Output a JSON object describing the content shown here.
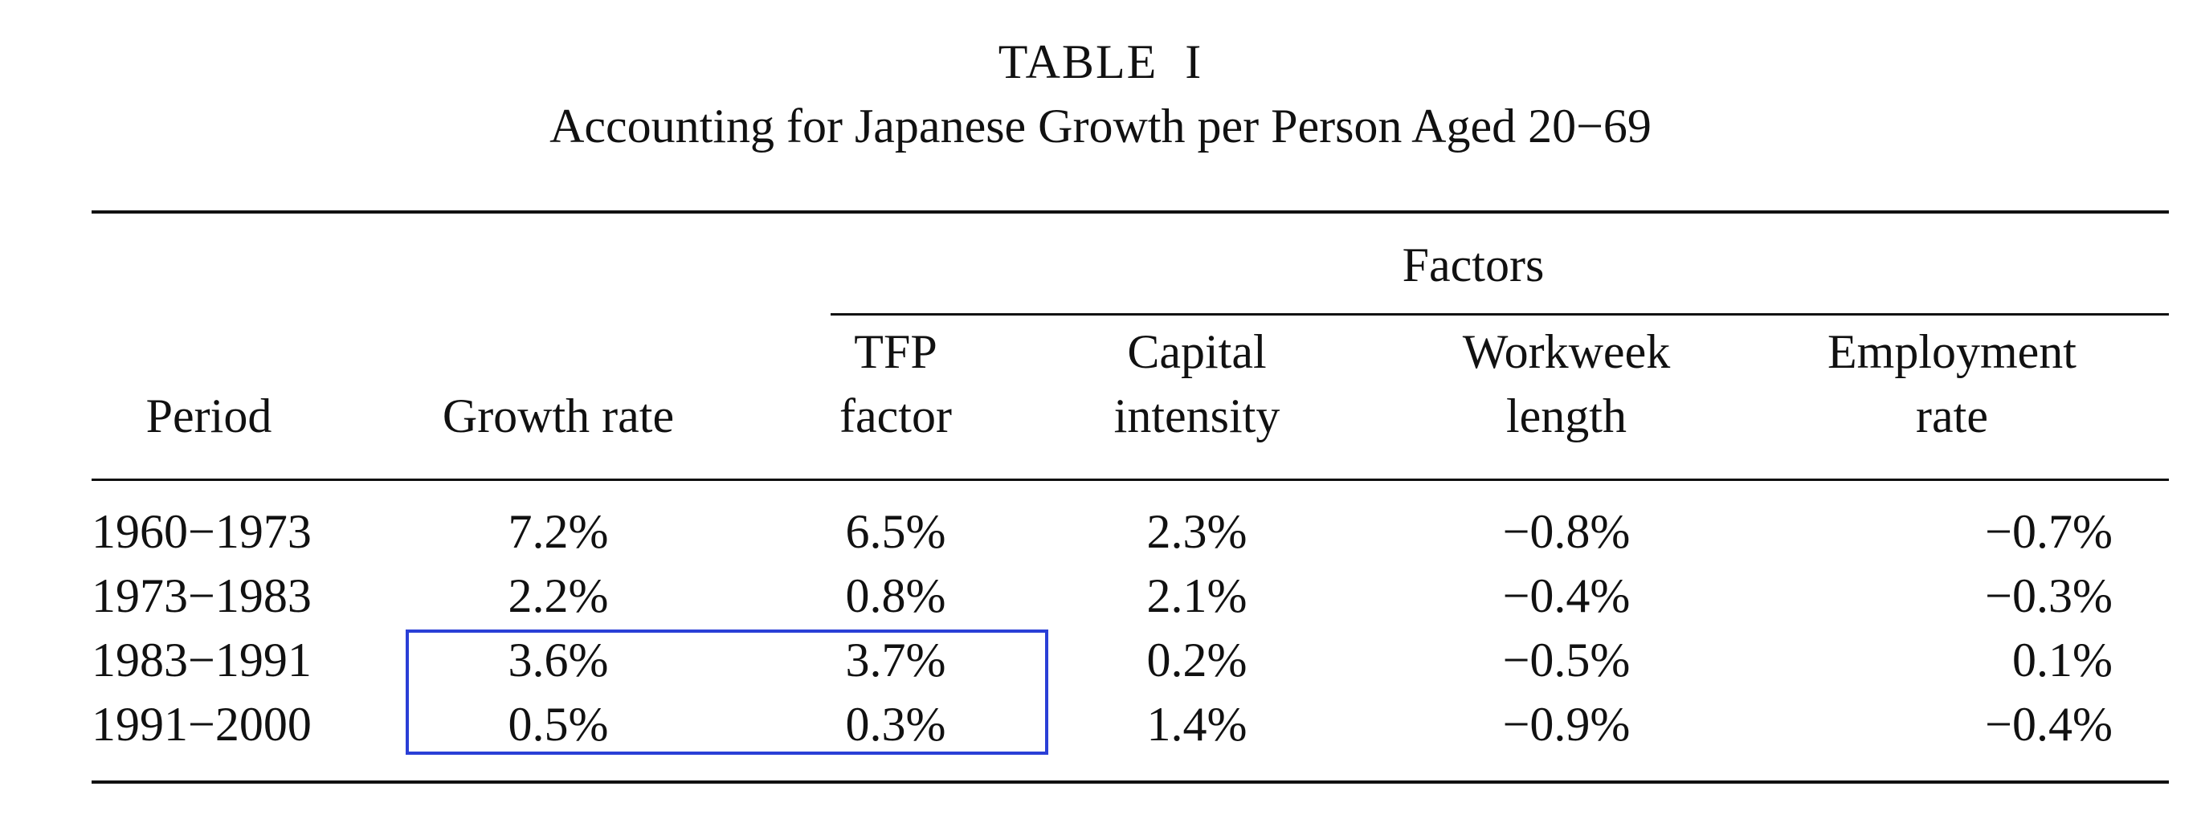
{
  "title": "TABLE  I",
  "subtitle": "Accounting for Japanese Growth per Person Aged 20−69",
  "table": {
    "group_header": "Factors",
    "columns": {
      "period": {
        "line1": "",
        "line2": "Period"
      },
      "growth": {
        "line1": "",
        "line2": "Growth rate"
      },
      "tfp": {
        "line1": "TFP",
        "line2": "factor"
      },
      "capital": {
        "line1": "Capital",
        "line2": "intensity"
      },
      "workweek": {
        "line1": "Workweek",
        "line2": "length"
      },
      "employment": {
        "line1": "Employment",
        "line2": "rate"
      }
    },
    "rows": [
      {
        "period": "1960−1973",
        "growth": "7.2%",
        "tfp": "6.5%",
        "capital": "2.3%",
        "workweek": "−0.8%",
        "employment": "−0.7%"
      },
      {
        "period": "1973−1983",
        "growth": "2.2%",
        "tfp": "0.8%",
        "capital": "2.1%",
        "workweek": "−0.4%",
        "employment": "−0.3%"
      },
      {
        "period": "1983−1991",
        "growth": "3.6%",
        "tfp": "3.7%",
        "capital": "0.2%",
        "workweek": "−0.5%",
        "employment": "0.1%"
      },
      {
        "period": "1991−2000",
        "growth": "0.5%",
        "tfp": "0.3%",
        "capital": "1.4%",
        "workweek": "−0.9%",
        "employment": "−0.4%"
      }
    ]
  },
  "colors": {
    "text": "#111111",
    "highlight": "#2a3fd6"
  }
}
